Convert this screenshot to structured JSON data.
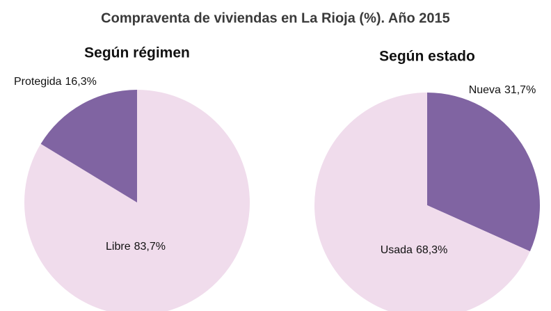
{
  "title": "Compraventa de viviendas en La Rioja (%). Año 2015",
  "chart_data": [
    {
      "type": "pie",
      "title": "Según régimen",
      "categories": [
        "Libre",
        "Protegida"
      ],
      "values": [
        83.7,
        16.3
      ],
      "value_labels": [
        "83,7%",
        "16,3%"
      ],
      "colors": [
        "#f0dcec",
        "#8064a2"
      ]
    },
    {
      "type": "pie",
      "title": "Según estado",
      "categories": [
        "Nueva",
        "Usada"
      ],
      "values": [
        31.7,
        68.3
      ],
      "value_labels": [
        "31,7%",
        "68,3%"
      ],
      "colors": [
        "#8064a2",
        "#f0dcec"
      ]
    }
  ]
}
